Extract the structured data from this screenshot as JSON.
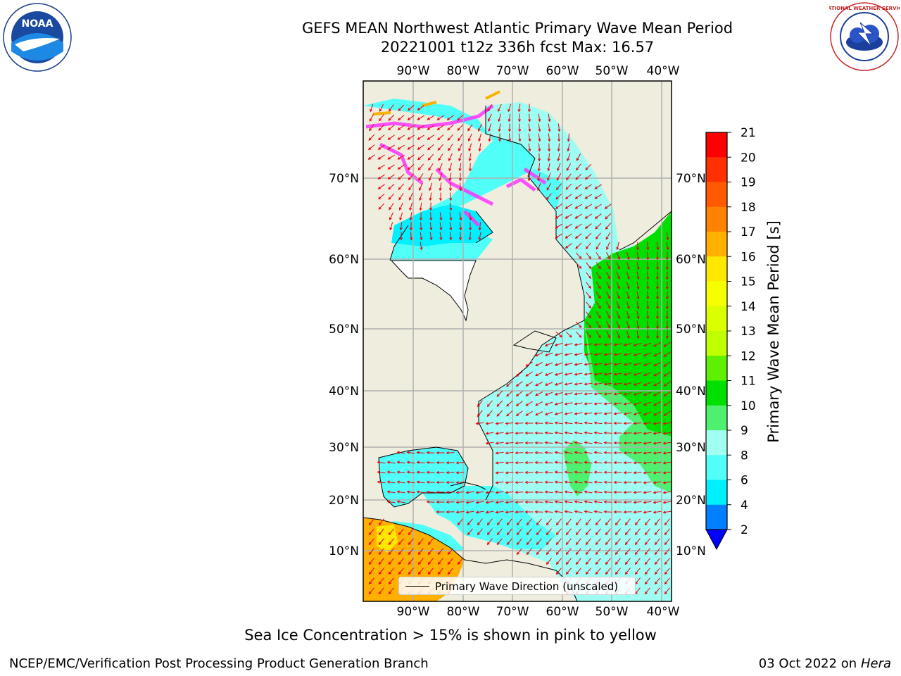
{
  "title": {
    "line1": "GEFS MEAN Northwest Atlantic Primary Wave Mean Period",
    "line2": "20221001 t12z 336h fcst   Max: 16.57"
  },
  "logos": {
    "left": {
      "text": "NOAA",
      "icon": "noaa-logo"
    },
    "right": {
      "text": "NATIONAL WEATHER SERVICE",
      "icon": "nws-logo"
    }
  },
  "map": {
    "lon_labels": [
      "90°W",
      "80°W",
      "70°W",
      "60°W",
      "50°W",
      "40°W"
    ],
    "lat_labels": [
      "70°N",
      "60°N",
      "50°N",
      "40°N",
      "30°N",
      "20°N",
      "10°N"
    ],
    "legend": "Primary Wave Direction (unscaled)",
    "colors": {
      "land": "#efedde",
      "grid": "#b0b0b0",
      "arrow": "#e8000b",
      "ice": "#ff33ff",
      "missing": "#ffffff"
    }
  },
  "colorbar": {
    "title": "Primary Wave Mean Period [s]",
    "ticks": [
      "21",
      "20",
      "19",
      "18",
      "17",
      "16",
      "15",
      "14",
      "13",
      "12",
      "11",
      "10",
      "9",
      "8",
      "6",
      "4",
      "2"
    ],
    "colors": [
      "#ff0000",
      "#ff3000",
      "#ff5a00",
      "#ff8200",
      "#ffb000",
      "#ffe800",
      "#f5ff00",
      "#dcff00",
      "#c0ff00",
      "#5ef000",
      "#00e000",
      "#4ef070",
      "#a0fff0",
      "#50fff8",
      "#00f0ff",
      "#0080ff"
    ],
    "under_color": "#0000ff"
  },
  "note": "Sea Ice Concentration > 15% is shown in pink to yellow",
  "footer": {
    "left": "NCEP/EMC/Verification Post Processing Product Generation Branch",
    "date": "03 Oct 2022 on ",
    "machine": "Hera"
  }
}
